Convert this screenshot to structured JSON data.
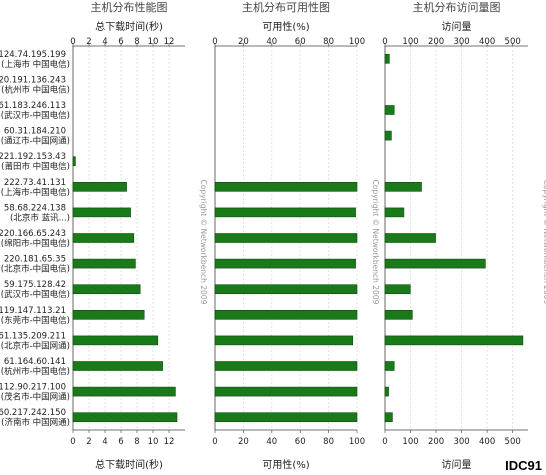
{
  "copyright": "Copyright © Networkbench 2009",
  "logo_text": "IDC91",
  "bar_color": "#1a7a1a",
  "bar_border": "#0b4d0b",
  "rows": [
    {
      "ip": "124.74.195.199",
      "loc": "(上海市 中国电信)"
    },
    {
      "ip": "220.191.136.243",
      "loc": "(杭州市 中国电信)"
    },
    {
      "ip": "61.183.246.113",
      "loc": "(武汉市-中国电信)"
    },
    {
      "ip": "60.31.184.210",
      "loc": "(通辽市-中国网通)"
    },
    {
      "ip": "221.192.153.43",
      "loc": "(莆田市 中国电信)"
    },
    {
      "ip": "222.73.41.131",
      "loc": "(上海市-中国电信)"
    },
    {
      "ip": "58.68.224.138",
      "loc": "(北京市 蓝讯...)"
    },
    {
      "ip": "220.166.65.243",
      "loc": "(绵阳市-中国电信)"
    },
    {
      "ip": "220.181.65.35",
      "loc": "(北京市-中国电信)"
    },
    {
      "ip": "59.175.128.42",
      "loc": "(武汉市-中国电信)"
    },
    {
      "ip": "119.147.113.21",
      "loc": "(东莞市-中国电信)"
    },
    {
      "ip": "61.135.209.211",
      "loc": "(北京市-中国网通)"
    },
    {
      "ip": "61.164.60.141",
      "loc": "(杭州市-中国电信)"
    },
    {
      "ip": "112.90.217.100",
      "loc": "(茂名市-中国网通)"
    },
    {
      "ip": "60.217.242.150",
      "loc": "(济南市 中国网通)"
    }
  ],
  "chart_data": [
    {
      "type": "bar",
      "orientation": "horizontal",
      "title": "主机分布性能图",
      "xlabel": "总下载时间(秒)",
      "xlim": [
        0,
        14
      ],
      "ticks": [
        0,
        2,
        4,
        6,
        8,
        10,
        12
      ],
      "values": [
        0,
        0,
        0,
        0,
        0.3,
        6.7,
        7.2,
        7.6,
        7.8,
        8.4,
        8.9,
        10.6,
        11.2,
        12.8,
        13.0
      ]
    },
    {
      "type": "bar",
      "orientation": "horizontal",
      "title": "主机分布可用性图",
      "xlabel": "可用性(%)",
      "xlim": [
        0,
        100
      ],
      "ticks": [
        0,
        20,
        40,
        60,
        80,
        100
      ],
      "values": [
        0,
        0,
        0,
        0,
        0,
        100,
        99,
        100,
        99,
        100,
        100,
        97,
        100,
        100,
        100
      ]
    },
    {
      "type": "bar",
      "orientation": "horizontal",
      "title": "主机分布访问量图",
      "xlabel": "访问量",
      "xlim": [
        0,
        560
      ],
      "ticks": [
        0,
        100,
        200,
        300,
        400,
        500
      ],
      "values": [
        17,
        0,
        36,
        25,
        0,
        143,
        74,
        198,
        393,
        99,
        107,
        540,
        36,
        14,
        29
      ]
    }
  ]
}
